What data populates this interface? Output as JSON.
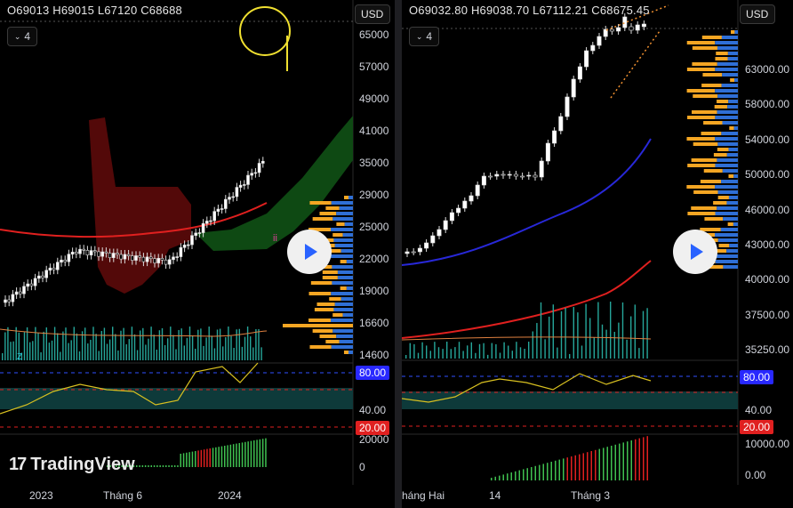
{
  "left": {
    "ohlc": "O69013 H69015 L67120 C68688",
    "interval_badge": "4",
    "currency": "USD",
    "price_ticks": [
      "65000",
      "57000",
      "49000",
      "41000",
      "35000",
      "29000",
      "25000",
      "22000",
      "19000",
      "16600",
      "14600"
    ],
    "rsi_ticks": {
      "high": "80.00",
      "mid": "40.00",
      "low": "20.00"
    },
    "macd_ticks": [
      "20000",
      "0"
    ],
    "time_ticks": [
      "2023",
      "Tháng 6",
      "2024"
    ],
    "watermark": "TradingView",
    "marker_ii": "ii",
    "marker_z": "Z"
  },
  "right": {
    "ohlc": "O69032.80 H69038.70 L67112.21 C68675.45",
    "interval_badge": "4",
    "currency": "USD",
    "price_ticks": [
      "63000.00",
      "58000.00",
      "54000.00",
      "50000.00",
      "46000.00",
      "43000.00",
      "40000.00",
      "37500.00",
      "35250.00"
    ],
    "rsi_ticks": {
      "high": "80.00",
      "mid": "40.00",
      "low": "20.00"
    },
    "macd_ticks": [
      "10000.00",
      "0.00"
    ],
    "time_ticks": [
      "háng Hai",
      "14",
      "Tháng 3"
    ]
  },
  "colors": {
    "up": "#ffffff",
    "down": "#000000",
    "ma_red": "#e0201f",
    "ma_blue": "#2828d8",
    "cloud_red": "#5c0a0a",
    "cloud_green": "#0f4d14",
    "rsi": "#d8c020",
    "rsi_band": "#0e3a3a",
    "vol": "#26a69a",
    "vp_orange": "#f5a623",
    "vp_blue": "#2f6fd6",
    "high_tag": "#2828ff",
    "low_tag": "#e02020",
    "accent_play": "#2962ff"
  },
  "icons": {
    "play": "play-icon",
    "chevron": "chevron-down-icon"
  }
}
